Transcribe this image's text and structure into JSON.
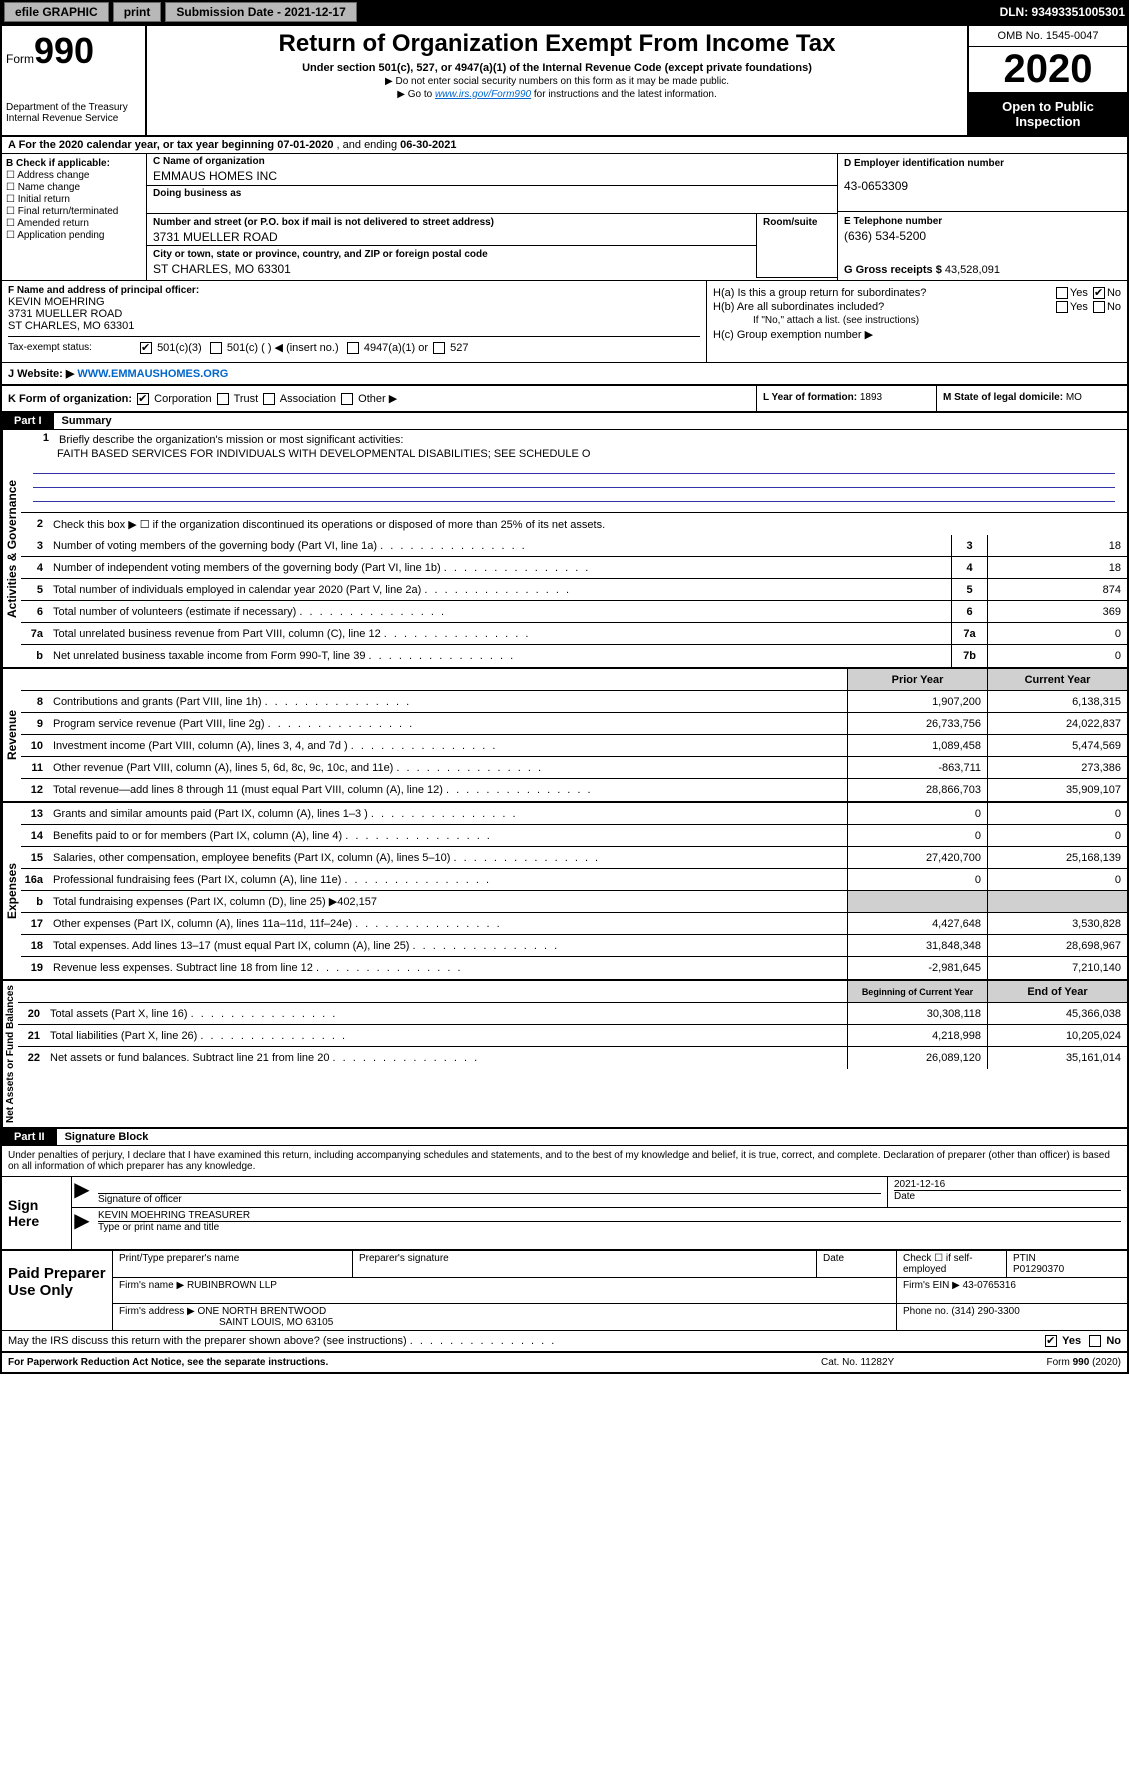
{
  "topbar": {
    "efile": "efile GRAPHIC",
    "print": "print",
    "sub_label": "Submission Date - 2021-12-17",
    "dln": "DLN: 93493351005301"
  },
  "header": {
    "form_prefix": "Form",
    "form_num": "990",
    "dept": "Department of the Treasury",
    "irs": "Internal Revenue Service",
    "title": "Return of Organization Exempt From Income Tax",
    "sub": "Under section 501(c), 527, or 4947(a)(1) of the Internal Revenue Code (except private foundations)",
    "note1": "▶ Do not enter social security numbers on this form as it may be made public.",
    "note2_pre": "▶ Go to ",
    "note2_link": "www.irs.gov/Form990",
    "note2_post": " for instructions and the latest information.",
    "omb": "OMB No. 1545-0047",
    "year": "2020",
    "open": "Open to Public Inspection"
  },
  "rowa": {
    "label": "A For the 2020 calendar year, or tax year beginning ",
    "begin": "07-01-2020",
    "mid": " , and ending ",
    "end": "06-30-2021"
  },
  "b": {
    "label": "B Check if applicable:",
    "c1": "Address change",
    "c2": "Name change",
    "c3": "Initial return",
    "c4": "Final return/terminated",
    "c5": "Amended return",
    "c6": "Application pending"
  },
  "c": {
    "name_label": "C Name of organization",
    "name": "EMMAUS HOMES INC",
    "dba_label": "Doing business as",
    "street_label": "Number and street (or P.O. box if mail is not delivered to street address)",
    "room_label": "Room/suite",
    "street": "3731 MUELLER ROAD",
    "city_label": "City or town, state or province, country, and ZIP or foreign postal code",
    "city": "ST CHARLES, MO  63301"
  },
  "d": {
    "label": "D Employer identification number",
    "val": "43-0653309"
  },
  "e": {
    "label": "E Telephone number",
    "val": "(636) 534-5200"
  },
  "g": {
    "label": "G Gross receipts $",
    "val": "43,528,091"
  },
  "f": {
    "label": "F Name and address of principal officer:",
    "name": "KEVIN MOEHRING",
    "addr1": "3731 MUELLER ROAD",
    "addr2": "ST CHARLES, MO  63301"
  },
  "h": {
    "a": "H(a)  Is this a group return for subordinates?",
    "b": "H(b)  Are all subordinates included?",
    "note": "If \"No,\" attach a list. (see instructions)",
    "c": "H(c)  Group exemption number ▶",
    "yes": "Yes",
    "no": "No"
  },
  "i": {
    "label": "Tax-exempt status:",
    "o1": "501(c)(3)",
    "o2": "501(c) (   ) ◀ (insert no.)",
    "o3": "4947(a)(1) or",
    "o4": "527"
  },
  "j": {
    "label": "J   Website: ▶",
    "val": "WWW.EMMAUSHOMES.ORG"
  },
  "k": {
    "label": "K Form of organization:",
    "o1": "Corporation",
    "o2": "Trust",
    "o3": "Association",
    "o4": "Other ▶"
  },
  "l": {
    "label": "L Year of formation:",
    "val": "1893"
  },
  "m": {
    "label": "M State of legal domicile:",
    "val": "MO"
  },
  "part1": {
    "hdr": "Part I",
    "title": "Summary"
  },
  "side": {
    "s1": "Activities & Governance",
    "s2": "Revenue",
    "s3": "Expenses",
    "s4": "Net Assets or Fund Balances"
  },
  "l1": {
    "label": "Briefly describe the organization's mission or most significant activities:",
    "text": "FAITH BASED SERVICES FOR INDIVIDUALS WITH DEVELOPMENTAL DISABILITIES; SEE SCHEDULE O"
  },
  "l2": "Check this box ▶ ☐ if the organization discontinued its operations or disposed of more than 25% of its net assets.",
  "lines_gov": [
    {
      "n": "3",
      "t": "Number of voting members of the governing body (Part VI, line 1a)",
      "box": "3",
      "v": "18"
    },
    {
      "n": "4",
      "t": "Number of independent voting members of the governing body (Part VI, line 1b)",
      "box": "4",
      "v": "18"
    },
    {
      "n": "5",
      "t": "Total number of individuals employed in calendar year 2020 (Part V, line 2a)",
      "box": "5",
      "v": "874"
    },
    {
      "n": "6",
      "t": "Total number of volunteers (estimate if necessary)",
      "box": "6",
      "v": "369"
    },
    {
      "n": "7a",
      "t": "Total unrelated business revenue from Part VIII, column (C), line 12",
      "box": "7a",
      "v": "0"
    },
    {
      "n": "b",
      "t": "Net unrelated business taxable income from Form 990-T, line 39",
      "box": "7b",
      "v": "0"
    }
  ],
  "hdr_py": "Prior Year",
  "hdr_cy": "Current Year",
  "lines_rev": [
    {
      "n": "8",
      "t": "Contributions and grants (Part VIII, line 1h)",
      "py": "1,907,200",
      "cy": "6,138,315"
    },
    {
      "n": "9",
      "t": "Program service revenue (Part VIII, line 2g)",
      "py": "26,733,756",
      "cy": "24,022,837"
    },
    {
      "n": "10",
      "t": "Investment income (Part VIII, column (A), lines 3, 4, and 7d )",
      "py": "1,089,458",
      "cy": "5,474,569"
    },
    {
      "n": "11",
      "t": "Other revenue (Part VIII, column (A), lines 5, 6d, 8c, 9c, 10c, and 11e)",
      "py": "-863,711",
      "cy": "273,386"
    },
    {
      "n": "12",
      "t": "Total revenue—add lines 8 through 11 (must equal Part VIII, column (A), line 12)",
      "py": "28,866,703",
      "cy": "35,909,107"
    }
  ],
  "lines_exp": [
    {
      "n": "13",
      "t": "Grants and similar amounts paid (Part IX, column (A), lines 1–3 )",
      "py": "0",
      "cy": "0"
    },
    {
      "n": "14",
      "t": "Benefits paid to or for members (Part IX, column (A), line 4)",
      "py": "0",
      "cy": "0"
    },
    {
      "n": "15",
      "t": "Salaries, other compensation, employee benefits (Part IX, column (A), lines 5–10)",
      "py": "27,420,700",
      "cy": "25,168,139"
    },
    {
      "n": "16a",
      "t": "Professional fundraising fees (Part IX, column (A), line 11e)",
      "py": "0",
      "cy": "0"
    },
    {
      "n": "b",
      "t": "Total fundraising expenses (Part IX, column (D), line 25) ▶402,157",
      "py": "",
      "cy": "",
      "shade": true
    },
    {
      "n": "17",
      "t": "Other expenses (Part IX, column (A), lines 11a–11d, 11f–24e)",
      "py": "4,427,648",
      "cy": "3,530,828"
    },
    {
      "n": "18",
      "t": "Total expenses. Add lines 13–17 (must equal Part IX, column (A), line 25)",
      "py": "31,848,348",
      "cy": "28,698,967"
    },
    {
      "n": "19",
      "t": "Revenue less expenses. Subtract line 18 from line 12",
      "py": "-2,981,645",
      "cy": "7,210,140"
    }
  ],
  "hdr_bcy": "Beginning of Current Year",
  "hdr_eoy": "End of Year",
  "lines_net": [
    {
      "n": "20",
      "t": "Total assets (Part X, line 16)",
      "py": "30,308,118",
      "cy": "45,366,038"
    },
    {
      "n": "21",
      "t": "Total liabilities (Part X, line 26)",
      "py": "4,218,998",
      "cy": "10,205,024"
    },
    {
      "n": "22",
      "t": "Net assets or fund balances. Subtract line 21 from line 20",
      "py": "26,089,120",
      "cy": "35,161,014"
    }
  ],
  "part2": {
    "hdr": "Part II",
    "title": "Signature Block"
  },
  "sig": {
    "decl": "Under penalties of perjury, I declare that I have examined this return, including accompanying schedules and statements, and to the best of my knowledge and belief, it is true, correct, and complete. Declaration of preparer (other than officer) is based on all information of which preparer has any knowledge.",
    "sign_here": "Sign Here",
    "sig_of_officer": "Signature of officer",
    "date": "2021-12-16",
    "date_label": "Date",
    "name": "KEVIN MOEHRING TREASURER",
    "name_label": "Type or print name and title"
  },
  "paid": {
    "label": "Paid Preparer Use Only",
    "h1": "Print/Type preparer's name",
    "h2": "Preparer's signature",
    "h3": "Date",
    "h4": "Check ☐ if self-employed",
    "h5": "PTIN",
    "ptin": "P01290370",
    "firm_label": "Firm's name    ▶",
    "firm": "RUBINBROWN LLP",
    "ein_label": "Firm's EIN ▶",
    "ein": "43-0765316",
    "addr_label": "Firm's address ▶",
    "addr": "ONE NORTH BRENTWOOD",
    "addr2": "SAINT LOUIS, MO  63105",
    "phone_label": "Phone no.",
    "phone": "(314) 290-3300"
  },
  "discuss": {
    "q": "May the IRS discuss this return with the preparer shown above? (see instructions)",
    "yes": "Yes",
    "no": "No"
  },
  "footer": {
    "l": "For Paperwork Reduction Act Notice, see the separate instructions.",
    "c": "Cat. No. 11282Y",
    "r": "Form 990 (2020)"
  }
}
